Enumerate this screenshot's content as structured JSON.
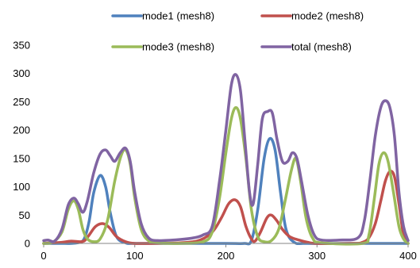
{
  "chart_data": {
    "type": "line",
    "smooth": true,
    "title": "",
    "xlabel": "",
    "ylabel": "",
    "xlim": [
      0,
      400
    ],
    "ylim": [
      0,
      350
    ],
    "xticks": [
      0,
      100,
      200,
      300,
      400
    ],
    "yticks": [
      0,
      50,
      100,
      150,
      200,
      250,
      300,
      350
    ],
    "grid": false,
    "legend_position": "top",
    "series": [
      {
        "name": "mode1 (mesh8)",
        "color": "#4f81bd",
        "points": [
          [
            0,
            0
          ],
          [
            10,
            0
          ],
          [
            20,
            0
          ],
          [
            30,
            0
          ],
          [
            40,
            2
          ],
          [
            45,
            10
          ],
          [
            50,
            40
          ],
          [
            55,
            90
          ],
          [
            62,
            120
          ],
          [
            68,
            100
          ],
          [
            73,
            55
          ],
          [
            80,
            12
          ],
          [
            90,
            1
          ],
          [
            100,
            0
          ],
          [
            150,
            0
          ],
          [
            200,
            0
          ],
          [
            220,
            0
          ],
          [
            228,
            5
          ],
          [
            235,
            60
          ],
          [
            242,
            150
          ],
          [
            248,
            185
          ],
          [
            254,
            165
          ],
          [
            260,
            90
          ],
          [
            266,
            25
          ],
          [
            275,
            2
          ],
          [
            290,
            0
          ],
          [
            350,
            0
          ],
          [
            400,
            0
          ]
        ]
      },
      {
        "name": "mode2 (mesh8)",
        "color": "#c0504d",
        "points": [
          [
            0,
            0
          ],
          [
            10,
            1
          ],
          [
            20,
            2
          ],
          [
            30,
            4
          ],
          [
            40,
            3
          ],
          [
            45,
            5
          ],
          [
            50,
            15
          ],
          [
            57,
            30
          ],
          [
            65,
            35
          ],
          [
            72,
            28
          ],
          [
            80,
            12
          ],
          [
            90,
            3
          ],
          [
            100,
            0
          ],
          [
            120,
            0
          ],
          [
            150,
            1
          ],
          [
            170,
            5
          ],
          [
            185,
            20
          ],
          [
            195,
            45
          ],
          [
            203,
            70
          ],
          [
            210,
            77
          ],
          [
            216,
            65
          ],
          [
            222,
            30
          ],
          [
            228,
            8
          ],
          [
            232,
            4
          ],
          [
            238,
            20
          ],
          [
            245,
            45
          ],
          [
            250,
            50
          ],
          [
            256,
            40
          ],
          [
            262,
            25
          ],
          [
            270,
            12
          ],
          [
            280,
            6
          ],
          [
            290,
            2
          ],
          [
            300,
            0
          ],
          [
            340,
            0
          ],
          [
            350,
            2
          ],
          [
            357,
            10
          ],
          [
            364,
            35
          ],
          [
            370,
            75
          ],
          [
            375,
            110
          ],
          [
            380,
            127
          ],
          [
            385,
            118
          ],
          [
            390,
            70
          ],
          [
            395,
            15
          ],
          [
            400,
            0
          ]
        ]
      },
      {
        "name": "mode3 (mesh8)",
        "color": "#9bbb59",
        "points": [
          [
            0,
            0
          ],
          [
            10,
            2
          ],
          [
            20,
            20
          ],
          [
            27,
            60
          ],
          [
            33,
            75
          ],
          [
            38,
            60
          ],
          [
            43,
            25
          ],
          [
            48,
            8
          ],
          [
            55,
            3
          ],
          [
            62,
            8
          ],
          [
            70,
            40
          ],
          [
            78,
            110
          ],
          [
            85,
            155
          ],
          [
            90,
            165
          ],
          [
            95,
            140
          ],
          [
            100,
            80
          ],
          [
            107,
            25
          ],
          [
            115,
            5
          ],
          [
            125,
            1
          ],
          [
            150,
            0
          ],
          [
            175,
            3
          ],
          [
            185,
            20
          ],
          [
            193,
            80
          ],
          [
            200,
            160
          ],
          [
            206,
            220
          ],
          [
            211,
            240
          ],
          [
            216,
            220
          ],
          [
            222,
            150
          ],
          [
            228,
            60
          ],
          [
            235,
            12
          ],
          [
            242,
            3
          ],
          [
            250,
            5
          ],
          [
            258,
            25
          ],
          [
            265,
            75
          ],
          [
            272,
            130
          ],
          [
            277,
            150
          ],
          [
            282,
            110
          ],
          [
            288,
            45
          ],
          [
            295,
            10
          ],
          [
            305,
            1
          ],
          [
            350,
            0
          ],
          [
            357,
            15
          ],
          [
            363,
            80
          ],
          [
            368,
            140
          ],
          [
            373,
            160
          ],
          [
            378,
            145
          ],
          [
            384,
            90
          ],
          [
            390,
            30
          ],
          [
            395,
            8
          ],
          [
            400,
            0
          ]
        ]
      },
      {
        "name": "total (mesh8)",
        "color": "#8064a2",
        "points": [
          [
            0,
            5
          ],
          [
            5,
            6
          ],
          [
            12,
            4
          ],
          [
            20,
            25
          ],
          [
            27,
            68
          ],
          [
            33,
            80
          ],
          [
            38,
            70
          ],
          [
            43,
            55
          ],
          [
            48,
            75
          ],
          [
            55,
            125
          ],
          [
            62,
            158
          ],
          [
            68,
            165
          ],
          [
            73,
            155
          ],
          [
            78,
            145
          ],
          [
            84,
            160
          ],
          [
            90,
            168
          ],
          [
            95,
            145
          ],
          [
            100,
            90
          ],
          [
            107,
            35
          ],
          [
            115,
            10
          ],
          [
            125,
            5
          ],
          [
            150,
            7
          ],
          [
            165,
            10
          ],
          [
            175,
            15
          ],
          [
            185,
            30
          ],
          [
            193,
            110
          ],
          [
            200,
            200
          ],
          [
            206,
            280
          ],
          [
            211,
            298
          ],
          [
            216,
            270
          ],
          [
            221,
            180
          ],
          [
            226,
            90
          ],
          [
            230,
            70
          ],
          [
            235,
            140
          ],
          [
            240,
            220
          ],
          [
            246,
            233
          ],
          [
            251,
            230
          ],
          [
            256,
            185
          ],
          [
            262,
            145
          ],
          [
            268,
            145
          ],
          [
            273,
            160
          ],
          [
            278,
            150
          ],
          [
            283,
            110
          ],
          [
            290,
            50
          ],
          [
            297,
            15
          ],
          [
            305,
            6
          ],
          [
            325,
            6
          ],
          [
            345,
            10
          ],
          [
            352,
            40
          ],
          [
            358,
            110
          ],
          [
            364,
            190
          ],
          [
            370,
            240
          ],
          [
            375,
            252
          ],
          [
            380,
            240
          ],
          [
            385,
            190
          ],
          [
            390,
            90
          ],
          [
            395,
            30
          ],
          [
            400,
            5
          ]
        ]
      }
    ]
  }
}
